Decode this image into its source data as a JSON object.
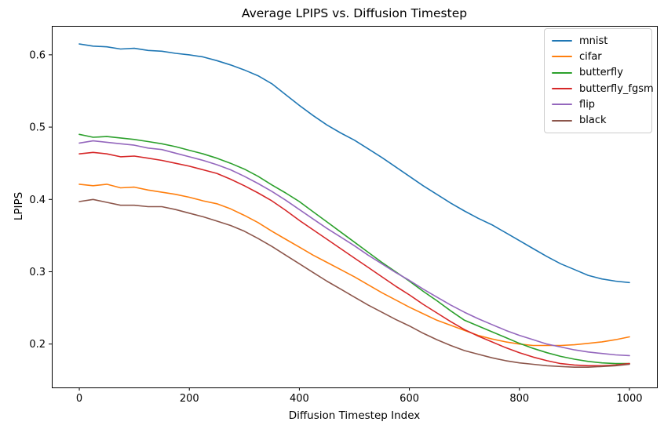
{
  "figure": {
    "title": "Average LPIPS vs. Diffusion Timestep",
    "xlabel": "Diffusion Timestep Index",
    "ylabel": "LPIPS"
  },
  "chart_data": {
    "type": "line",
    "title": "Average LPIPS vs. Diffusion Timestep",
    "xlabel": "Diffusion Timestep Index",
    "ylabel": "LPIPS",
    "xlim": [
      -50,
      1050
    ],
    "ylim": [
      0.14,
      0.64
    ],
    "xticks": [
      0,
      200,
      400,
      600,
      800,
      1000
    ],
    "yticks": [
      0.2,
      0.3,
      0.4,
      0.5,
      0.6
    ],
    "grid": false,
    "legend_position": "upper right",
    "x": [
      0,
      25,
      50,
      75,
      100,
      125,
      150,
      175,
      200,
      225,
      250,
      275,
      300,
      325,
      350,
      375,
      400,
      425,
      450,
      475,
      500,
      525,
      550,
      575,
      600,
      625,
      650,
      675,
      700,
      725,
      750,
      775,
      800,
      825,
      850,
      875,
      900,
      925,
      950,
      975,
      1000
    ],
    "series": [
      {
        "name": "mnist",
        "color": "#1f77b4",
        "values": [
          0.615,
          0.612,
          0.611,
          0.608,
          0.609,
          0.606,
          0.605,
          0.602,
          0.6,
          0.597,
          0.592,
          0.586,
          0.579,
          0.571,
          0.56,
          0.545,
          0.53,
          0.516,
          0.503,
          0.492,
          0.482,
          0.47,
          0.458,
          0.445,
          0.432,
          0.419,
          0.407,
          0.395,
          0.384,
          0.374,
          0.365,
          0.354,
          0.343,
          0.332,
          0.321,
          0.311,
          0.303,
          0.295,
          0.29,
          0.287,
          0.285
        ]
      },
      {
        "name": "cifar",
        "color": "#ff7f0e",
        "values": [
          0.421,
          0.419,
          0.421,
          0.416,
          0.417,
          0.413,
          0.41,
          0.407,
          0.403,
          0.398,
          0.394,
          0.387,
          0.378,
          0.368,
          0.356,
          0.345,
          0.334,
          0.323,
          0.313,
          0.303,
          0.293,
          0.282,
          0.271,
          0.261,
          0.251,
          0.242,
          0.233,
          0.226,
          0.219,
          0.212,
          0.207,
          0.203,
          0.2,
          0.198,
          0.198,
          0.198,
          0.199,
          0.201,
          0.203,
          0.206,
          0.21
        ]
      },
      {
        "name": "butterfly",
        "color": "#2ca02c",
        "values": [
          0.49,
          0.486,
          0.487,
          0.485,
          0.483,
          0.48,
          0.477,
          0.473,
          0.468,
          0.463,
          0.457,
          0.45,
          0.442,
          0.432,
          0.42,
          0.409,
          0.397,
          0.383,
          0.369,
          0.355,
          0.341,
          0.327,
          0.313,
          0.3,
          0.287,
          0.273,
          0.26,
          0.246,
          0.233,
          0.225,
          0.217,
          0.209,
          0.201,
          0.194,
          0.188,
          0.183,
          0.179,
          0.176,
          0.174,
          0.173,
          0.173
        ]
      },
      {
        "name": "butterfly_fgsm",
        "color": "#d62728",
        "values": [
          0.463,
          0.465,
          0.463,
          0.459,
          0.46,
          0.457,
          0.454,
          0.45,
          0.446,
          0.441,
          0.436,
          0.428,
          0.419,
          0.409,
          0.398,
          0.385,
          0.371,
          0.358,
          0.345,
          0.332,
          0.319,
          0.306,
          0.293,
          0.28,
          0.268,
          0.255,
          0.243,
          0.231,
          0.22,
          0.211,
          0.203,
          0.195,
          0.188,
          0.182,
          0.177,
          0.173,
          0.171,
          0.17,
          0.17,
          0.171,
          0.173
        ]
      },
      {
        "name": "flip",
        "color": "#9467bd",
        "values": [
          0.478,
          0.481,
          0.479,
          0.477,
          0.475,
          0.471,
          0.469,
          0.464,
          0.459,
          0.454,
          0.448,
          0.441,
          0.432,
          0.422,
          0.411,
          0.399,
          0.386,
          0.373,
          0.36,
          0.348,
          0.336,
          0.323,
          0.311,
          0.299,
          0.288,
          0.276,
          0.265,
          0.254,
          0.244,
          0.235,
          0.227,
          0.219,
          0.212,
          0.206,
          0.2,
          0.196,
          0.192,
          0.189,
          0.187,
          0.185,
          0.184
        ]
      },
      {
        "name": "black",
        "color": "#8c564b",
        "values": [
          0.397,
          0.4,
          0.396,
          0.392,
          0.392,
          0.39,
          0.39,
          0.386,
          0.381,
          0.376,
          0.37,
          0.364,
          0.356,
          0.346,
          0.335,
          0.323,
          0.311,
          0.299,
          0.287,
          0.276,
          0.265,
          0.254,
          0.244,
          0.234,
          0.225,
          0.215,
          0.206,
          0.198,
          0.191,
          0.186,
          0.181,
          0.177,
          0.174,
          0.172,
          0.17,
          0.169,
          0.168,
          0.168,
          0.169,
          0.17,
          0.172
        ]
      }
    ]
  }
}
